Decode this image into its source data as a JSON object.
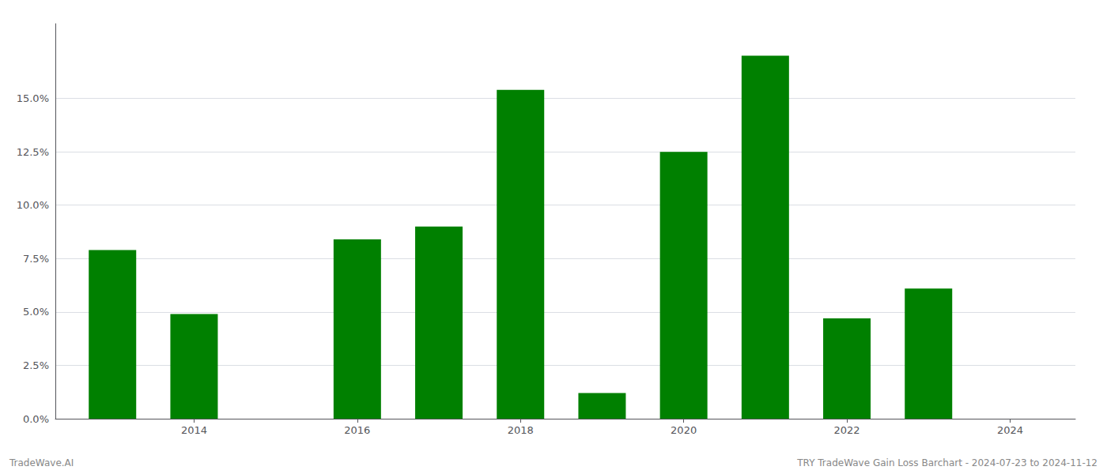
{
  "chart_data": {
    "type": "bar",
    "x": [
      2013,
      2014,
      2016,
      2017,
      2018,
      2019,
      2020,
      2021,
      2022,
      2023
    ],
    "values": [
      0.079,
      0.049,
      0.084,
      0.09,
      0.154,
      0.012,
      0.125,
      0.17,
      0.047,
      0.061
    ],
    "color": "#008000",
    "xlim": [
      2012.3,
      2024.8
    ],
    "xticks": [
      2014,
      2016,
      2018,
      2020,
      2022,
      2024
    ],
    "ylim": [
      0,
      0.185
    ],
    "yticks": [
      {
        "value": 0.0,
        "label": "0.0%"
      },
      {
        "value": 0.025,
        "label": "2.5%"
      },
      {
        "value": 0.05,
        "label": "5.0%"
      },
      {
        "value": 0.075,
        "label": "7.5%"
      },
      {
        "value": 0.1,
        "label": "10.0%"
      },
      {
        "value": 0.125,
        "label": "12.5%"
      },
      {
        "value": 0.15,
        "label": "15.0%"
      }
    ],
    "grid": true,
    "annotations": [
      "TradeWave.AI",
      "TRY TradeWave Gain Loss Barchart - 2024-07-23 to 2024-11-12"
    ]
  }
}
